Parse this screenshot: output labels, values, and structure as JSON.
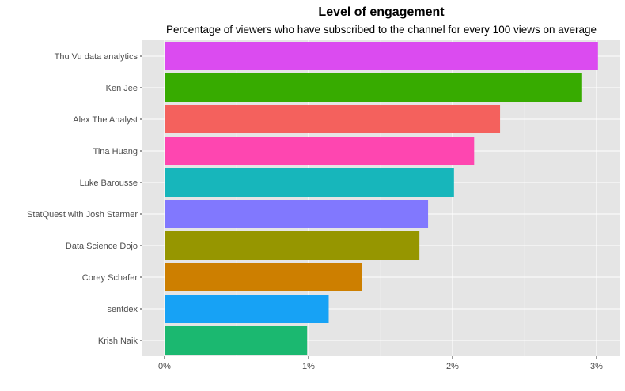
{
  "chart_data": {
    "type": "bar",
    "orientation": "horizontal",
    "title": "Level of engagement",
    "subtitle": "Percentage of viewers who have subscribed to the channel for every 100 views on average",
    "xlabel": "",
    "ylabel": "",
    "xlim": [
      0,
      3.15
    ],
    "x_ticks": [
      0,
      1,
      2,
      3
    ],
    "x_tick_labels": [
      "0%",
      "1%",
      "2%",
      "3%"
    ],
    "grid": true,
    "legend": "none",
    "bars": [
      {
        "category": "Krish Naik",
        "value": 0.99,
        "color": "#1bb870"
      },
      {
        "category": "sentdex",
        "value": 1.14,
        "color": "#17a2f5"
      },
      {
        "category": "Corey Schafer",
        "value": 1.37,
        "color": "#cd7f00"
      },
      {
        "category": "Data Science Dojo",
        "value": 1.77,
        "color": "#969600"
      },
      {
        "category": "StatQuest with Josh Starmer",
        "value": 1.83,
        "color": "#8178fe"
      },
      {
        "category": "Luke Barousse",
        "value": 2.01,
        "color": "#17b6bb"
      },
      {
        "category": "Tina Huang",
        "value": 2.15,
        "color": "#fe46b0"
      },
      {
        "category": "Alex The Analyst",
        "value": 2.33,
        "color": "#f4615d"
      },
      {
        "category": "Ken Jee",
        "value": 2.9,
        "color": "#37ab00"
      },
      {
        "category": "Thu Vu data analytics",
        "value": 3.01,
        "color": "#db4bf0"
      }
    ]
  }
}
